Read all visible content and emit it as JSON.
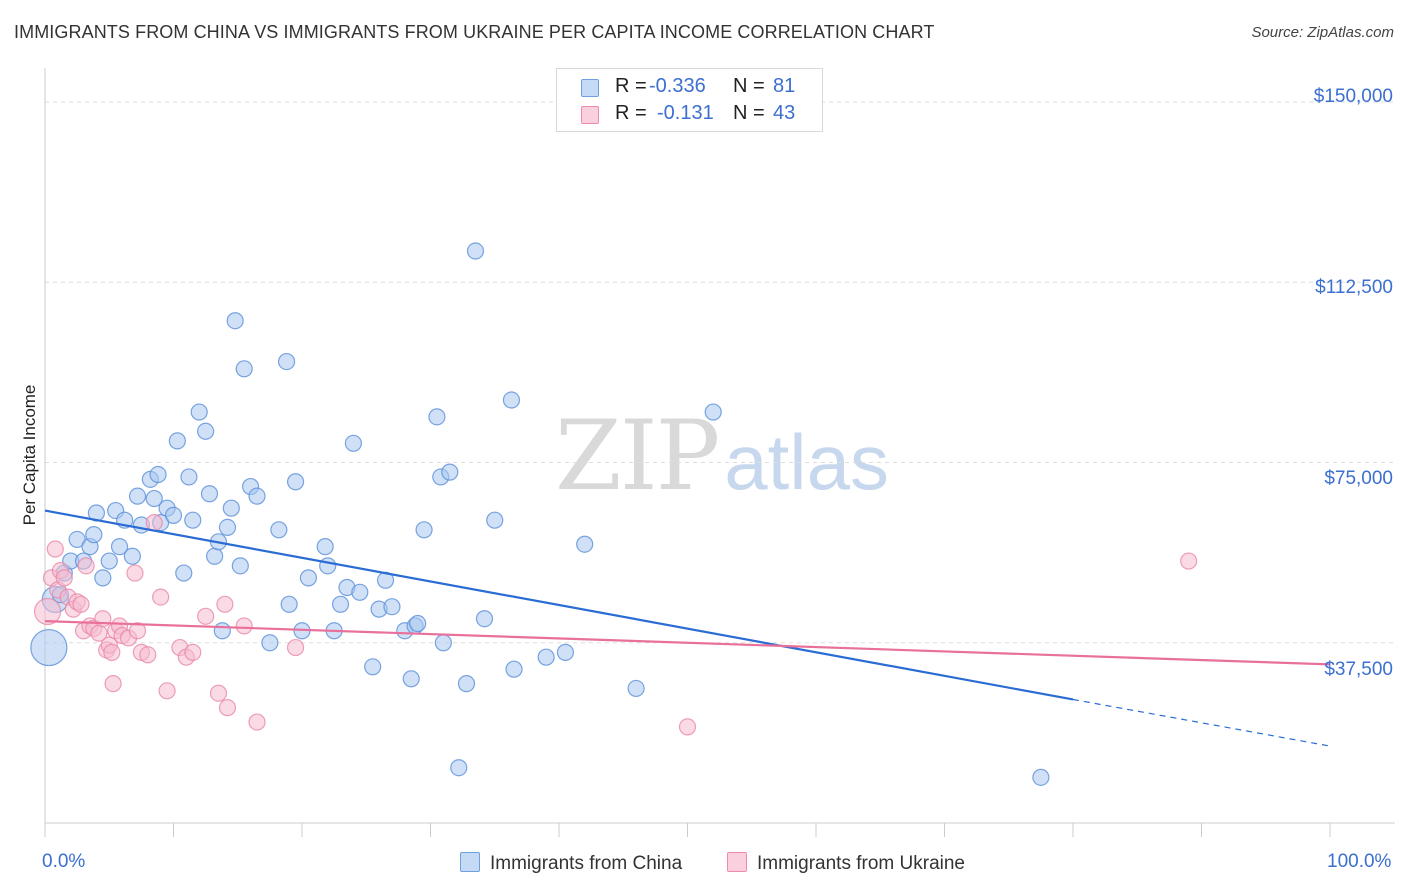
{
  "title": "IMMIGRANTS FROM CHINA VS IMMIGRANTS FROM UKRAINE PER CAPITA INCOME CORRELATION CHART",
  "source": "Source: ZipAtlas.com",
  "watermark": {
    "zip": "ZIP",
    "atlas": "atlas"
  },
  "legend_top": {
    "rows": [
      {
        "r_label": "R =",
        "r_value": "-0.336",
        "n_label": "N =",
        "n_value": "81",
        "color": "#6fa0e0"
      },
      {
        "r_label": "R =",
        "r_value": "-0.131",
        "n_label": "N =",
        "n_value": "43",
        "color": "#f08aaa"
      }
    ]
  },
  "legend_bottom": {
    "china": "Immigrants from China",
    "ukraine": "Immigrants from Ukraine"
  },
  "colors": {
    "china_fill": "#a9c8f0",
    "china_stroke": "#5a8fd8",
    "china_line": "#2a6cd4",
    "ukraine_fill": "#f6bcd0",
    "ukraine_stroke": "#e888a8",
    "ukraine_line": "#e8709a",
    "axis_text": "#3b6fd0",
    "grid": "#dddddd"
  },
  "chart_data": {
    "type": "scatter",
    "title": "IMMIGRANTS FROM CHINA VS IMMIGRANTS FROM UKRAINE PER CAPITA INCOME CORRELATION CHART",
    "xlabel": "",
    "ylabel": "Per Capita Income",
    "xlim": [
      0,
      100
    ],
    "ylim": [
      0,
      155000
    ],
    "x_tick_labels": [
      "0.0%",
      "100.0%"
    ],
    "y_ticks": [
      37500,
      75000,
      112500,
      150000
    ],
    "y_tick_labels": [
      "$37,500",
      "$75,000",
      "$112,500",
      "$150,000"
    ],
    "grid": true,
    "series": [
      {
        "name": "Immigrants from China",
        "R": -0.336,
        "N": 81,
        "trend": {
          "x0": 0,
          "y0": 65000,
          "x1": 80,
          "y1": 25700,
          "dashed_to_x": 100,
          "dashed_to_y": 16000
        },
        "points": [
          [
            0.3,
            36500,
            3
          ],
          [
            0.8,
            46500,
            2
          ],
          [
            1.5,
            52000,
            1
          ],
          [
            2.0,
            54500,
            1
          ],
          [
            2.5,
            59000,
            1
          ],
          [
            3.0,
            54500,
            1
          ],
          [
            3.5,
            57500,
            1
          ],
          [
            3.8,
            60000,
            1
          ],
          [
            4.0,
            64500,
            1
          ],
          [
            4.5,
            51000,
            1
          ],
          [
            5.0,
            54500,
            1
          ],
          [
            5.5,
            65000,
            1
          ],
          [
            5.8,
            57500,
            1
          ],
          [
            6.2,
            63000,
            1
          ],
          [
            6.8,
            55500,
            1
          ],
          [
            7.2,
            68000,
            1
          ],
          [
            7.5,
            62000,
            1
          ],
          [
            8.2,
            71500,
            1
          ],
          [
            8.5,
            67500,
            1
          ],
          [
            8.8,
            72500,
            1
          ],
          [
            9.0,
            62500,
            1
          ],
          [
            9.5,
            65500,
            1
          ],
          [
            10.0,
            64000,
            1
          ],
          [
            10.3,
            79500,
            1
          ],
          [
            10.8,
            52000,
            1
          ],
          [
            11.2,
            72000,
            1
          ],
          [
            11.5,
            63000,
            1
          ],
          [
            12.0,
            85500,
            1
          ],
          [
            12.5,
            81500,
            1
          ],
          [
            12.8,
            68500,
            1
          ],
          [
            13.2,
            55500,
            1
          ],
          [
            13.5,
            58500,
            1
          ],
          [
            13.8,
            40000,
            1
          ],
          [
            14.2,
            61500,
            1
          ],
          [
            14.5,
            65500,
            1
          ],
          [
            14.8,
            104500,
            1
          ],
          [
            15.2,
            53500,
            1
          ],
          [
            15.5,
            94500,
            1
          ],
          [
            16.0,
            70000,
            1
          ],
          [
            16.5,
            68000,
            1
          ],
          [
            17.5,
            37500,
            1
          ],
          [
            18.2,
            61000,
            1
          ],
          [
            18.8,
            96000,
            1
          ],
          [
            19.0,
            45500,
            1
          ],
          [
            19.5,
            71000,
            1
          ],
          [
            20.0,
            40000,
            1
          ],
          [
            20.5,
            51000,
            1
          ],
          [
            21.8,
            57500,
            1
          ],
          [
            22.0,
            53500,
            1
          ],
          [
            22.5,
            40000,
            1
          ],
          [
            23.0,
            45500,
            1
          ],
          [
            23.5,
            49000,
            1
          ],
          [
            24.0,
            79000,
            1
          ],
          [
            24.5,
            48000,
            1
          ],
          [
            25.5,
            32500,
            1
          ],
          [
            26.0,
            44500,
            1
          ],
          [
            26.5,
            50500,
            1
          ],
          [
            27.0,
            45000,
            1
          ],
          [
            28.0,
            40000,
            1
          ],
          [
            28.5,
            30000,
            1
          ],
          [
            28.8,
            41000,
            1
          ],
          [
            29.0,
            41500,
            1
          ],
          [
            29.5,
            61000,
            1
          ],
          [
            30.5,
            84500,
            1
          ],
          [
            31.0,
            37500,
            1
          ],
          [
            30.8,
            72000,
            1
          ],
          [
            31.5,
            73000,
            1
          ],
          [
            32.2,
            11500,
            1
          ],
          [
            32.8,
            29000,
            1
          ],
          [
            33.5,
            119000,
            1
          ],
          [
            34.2,
            42500,
            1
          ],
          [
            35.0,
            63000,
            1
          ],
          [
            36.3,
            88000,
            1
          ],
          [
            36.5,
            32000,
            1
          ],
          [
            39.0,
            34500,
            1
          ],
          [
            40.5,
            35500,
            1
          ],
          [
            46.0,
            28000,
            1
          ],
          [
            52.0,
            85500,
            1
          ],
          [
            77.5,
            9500,
            1
          ],
          [
            42.0,
            58000,
            1
          ],
          [
            1.2,
            47500,
            1
          ]
        ]
      },
      {
        "name": "Immigrants from Ukraine",
        "R": -0.131,
        "N": 43,
        "trend": {
          "x0": 0,
          "y0": 42000,
          "x1": 100,
          "y1": 33000
        },
        "points": [
          [
            0.2,
            44000,
            2
          ],
          [
            0.5,
            51000,
            1
          ],
          [
            0.8,
            57000,
            1
          ],
          [
            1.0,
            48500,
            1
          ],
          [
            1.2,
            52500,
            1
          ],
          [
            1.5,
            51000,
            1
          ],
          [
            1.8,
            47000,
            1
          ],
          [
            2.2,
            44500,
            1
          ],
          [
            2.5,
            46000,
            1
          ],
          [
            2.8,
            45500,
            1
          ],
          [
            3.0,
            40000,
            1
          ],
          [
            3.2,
            53500,
            1
          ],
          [
            3.5,
            41000,
            1
          ],
          [
            3.8,
            40500,
            1
          ],
          [
            4.2,
            39500,
            1
          ],
          [
            4.5,
            42500,
            1
          ],
          [
            4.8,
            36000,
            1
          ],
          [
            5.0,
            37000,
            1
          ],
          [
            5.2,
            35500,
            1
          ],
          [
            5.5,
            40000,
            1
          ],
          [
            5.8,
            41000,
            1
          ],
          [
            6.0,
            39000,
            1
          ],
          [
            6.5,
            38500,
            1
          ],
          [
            5.3,
            29000,
            1
          ],
          [
            7.0,
            52000,
            1
          ],
          [
            7.2,
            40000,
            1
          ],
          [
            7.5,
            35500,
            1
          ],
          [
            8.0,
            35000,
            1
          ],
          [
            8.5,
            62500,
            1
          ],
          [
            9.0,
            47000,
            1
          ],
          [
            9.5,
            27500,
            1
          ],
          [
            10.5,
            36500,
            1
          ],
          [
            11.0,
            34500,
            1
          ],
          [
            11.5,
            35500,
            1
          ],
          [
            12.5,
            43000,
            1
          ],
          [
            13.5,
            27000,
            1
          ],
          [
            14.0,
            45500,
            1
          ],
          [
            15.5,
            41000,
            1
          ],
          [
            16.5,
            21000,
            1
          ],
          [
            19.5,
            36500,
            1
          ],
          [
            14.2,
            24000,
            1
          ],
          [
            50.0,
            20000,
            1
          ],
          [
            89.0,
            54500,
            1
          ]
        ]
      }
    ]
  }
}
